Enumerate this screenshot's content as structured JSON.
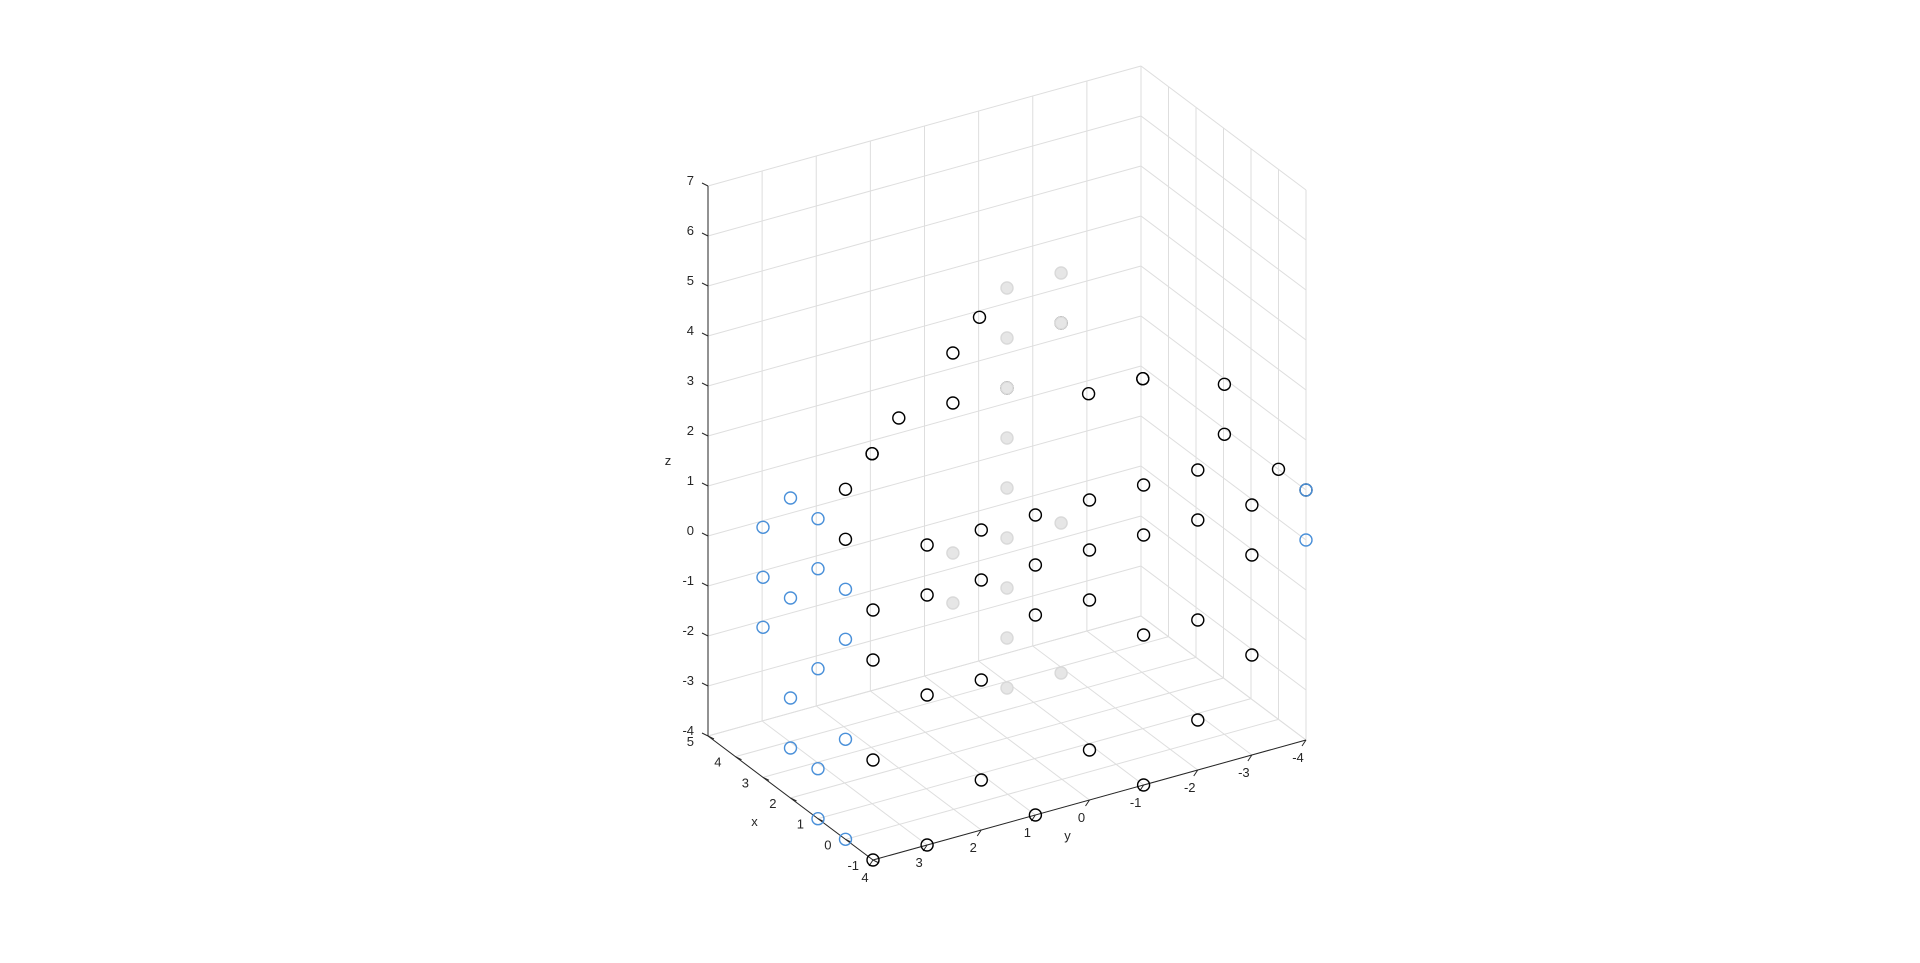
{
  "chart_data": {
    "type": "scatter",
    "projection": "3d",
    "grid": true,
    "xlabel": "x",
    "ylabel": "y",
    "zlabel": "z",
    "xlim": [
      -1,
      5
    ],
    "ylim": [
      -4,
      4
    ],
    "zlim": [
      -4,
      7
    ],
    "x_ticks": [
      "-1",
      "0",
      "1",
      "2",
      "3",
      "4",
      "5"
    ],
    "y_ticks": [
      "4",
      "3",
      "2",
      "1",
      "0",
      "-1",
      "-2",
      "-3",
      "-4"
    ],
    "z_ticks": [
      "-4",
      "-3",
      "-2",
      "-1",
      "0",
      "1",
      "2",
      "3",
      "4",
      "5",
      "6",
      "7"
    ],
    "series": [
      {
        "color": "#000000",
        "marker": "circle-open",
        "points": [
          [
            -1,
            4,
            -4
          ],
          [
            -1,
            3,
            -4
          ],
          [
            -1,
            2,
            -3
          ],
          [
            -1,
            1,
            -4
          ],
          [
            -1,
            0,
            -3
          ],
          [
            -1,
            -1,
            -4
          ],
          [
            -1,
            -2,
            -3
          ],
          [
            -1,
            -3,
            -2
          ],
          [
            -1,
            4,
            -2
          ],
          [
            -1,
            3,
            -1
          ],
          [
            -1,
            2,
            -1
          ],
          [
            -1,
            1,
            0
          ],
          [
            -1,
            0,
            0
          ],
          [
            -1,
            -1,
            -1
          ],
          [
            -1,
            -2,
            -1
          ],
          [
            -1,
            -3,
            0
          ],
          [
            -1,
            4,
            0
          ],
          [
            -1,
            3,
            1
          ],
          [
            -1,
            2,
            1
          ],
          [
            -1,
            1,
            1
          ],
          [
            -1,
            0,
            1
          ],
          [
            -1,
            -1,
            1
          ],
          [
            -1,
            -2,
            1
          ],
          [
            -1,
            -3,
            1
          ],
          [
            -1,
            4,
            1
          ],
          [
            -1,
            3,
            2
          ],
          [
            -1,
            2,
            2
          ],
          [
            -1,
            1,
            2
          ],
          [
            -1,
            0,
            2
          ],
          [
            -1,
            -1,
            2
          ],
          [
            -1,
            -2,
            2
          ],
          [
            -1,
            -4,
            1
          ],
          [
            0,
            4,
            2
          ],
          [
            1,
            3,
            3
          ],
          [
            2,
            2,
            3
          ],
          [
            2,
            1,
            3
          ],
          [
            2,
            0,
            3
          ],
          [
            1,
            -1,
            3
          ],
          [
            1,
            -2,
            3
          ],
          [
            0,
            -3,
            3
          ],
          [
            0,
            4,
            3
          ],
          [
            1,
            3,
            3
          ],
          [
            2,
            1,
            4
          ],
          [
            3,
            0,
            4
          ],
          [
            2,
            -1,
            4
          ],
          [
            1,
            -2,
            3
          ],
          [
            0,
            -3,
            2
          ],
          [
            0,
            -4,
            1
          ]
        ]
      },
      {
        "color": "#4a90d9",
        "marker": "circle-open",
        "points": [
          [
            0,
            4,
            -4
          ],
          [
            1,
            4,
            -3
          ],
          [
            2,
            4,
            -2
          ],
          [
            3,
            4,
            -1
          ],
          [
            3,
            4,
            0
          ],
          [
            3,
            4,
            1
          ],
          [
            2,
            4,
            2
          ],
          [
            1,
            4,
            2
          ],
          [
            0,
            4,
            -2
          ],
          [
            1,
            4,
            -1
          ],
          [
            2,
            4,
            0
          ],
          [
            0,
            4,
            0
          ],
          [
            1,
            4,
            1
          ],
          [
            2,
            4,
            -3
          ],
          [
            0,
            4,
            1
          ],
          [
            1,
            4,
            -4
          ],
          [
            -1,
            -4,
            0
          ],
          [
            -1,
            -4,
            1
          ]
        ]
      },
      {
        "color": "#d9d9d9",
        "marker": "circle-open",
        "points": [
          [
            2,
            0,
            5
          ],
          [
            2,
            -1,
            5
          ],
          [
            2,
            0,
            4
          ],
          [
            2,
            0,
            3
          ],
          [
            2,
            0,
            1
          ],
          [
            2,
            0,
            0
          ],
          [
            2,
            0,
            -1
          ],
          [
            2,
            0,
            -2
          ],
          [
            2,
            0,
            -3
          ],
          [
            2,
            -1,
            -3
          ],
          [
            2,
            1,
            0
          ],
          [
            2,
            -1,
            0
          ],
          [
            2,
            0,
            2
          ],
          [
            2,
            -1,
            4
          ],
          [
            2,
            1,
            -1
          ]
        ]
      }
    ]
  }
}
